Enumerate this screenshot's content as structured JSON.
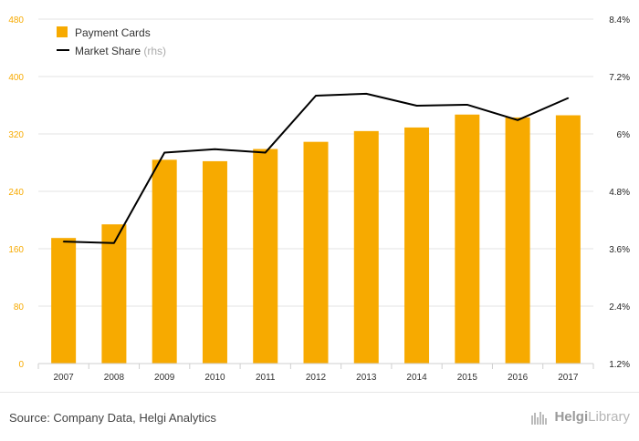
{
  "chart_data": {
    "type": "bar",
    "categories": [
      "2007",
      "2008",
      "2009",
      "2010",
      "2011",
      "2012",
      "2013",
      "2014",
      "2015",
      "2016",
      "2017"
    ],
    "series": [
      {
        "name": "Payment Cards",
        "axis": "left",
        "kind": "bar",
        "color": "#f7aa00",
        "values": [
          175,
          194,
          284,
          282,
          299,
          309,
          324,
          329,
          347,
          343,
          346
        ]
      },
      {
        "name": "Market Share",
        "axis": "right",
        "kind": "line",
        "color": "#000000",
        "values": [
          3.75,
          3.72,
          5.61,
          5.68,
          5.61,
          6.8,
          6.84,
          6.59,
          6.61,
          6.29,
          6.75
        ]
      }
    ],
    "legend": [
      {
        "label": "Payment Cards",
        "suffix": ""
      },
      {
        "label": "Market Share",
        "suffix": "(rhs)"
      }
    ],
    "y_left": {
      "range": [
        0,
        480
      ],
      "ticks": [
        "0",
        "80",
        "160",
        "240",
        "320",
        "400",
        "480"
      ],
      "color": "#f7aa00"
    },
    "y_right": {
      "range": [
        1.2,
        8.4
      ],
      "ticks": [
        "1.2%",
        "2.4%",
        "3.6%",
        "4.8%",
        "6%",
        "7.2%",
        "8.4%"
      ]
    },
    "grid": true,
    "legend_position": "top-left"
  },
  "footer": {
    "source": "Source: Company Data, Helgi Analytics",
    "brand_bold": "Helgi",
    "brand_light": "Library"
  }
}
